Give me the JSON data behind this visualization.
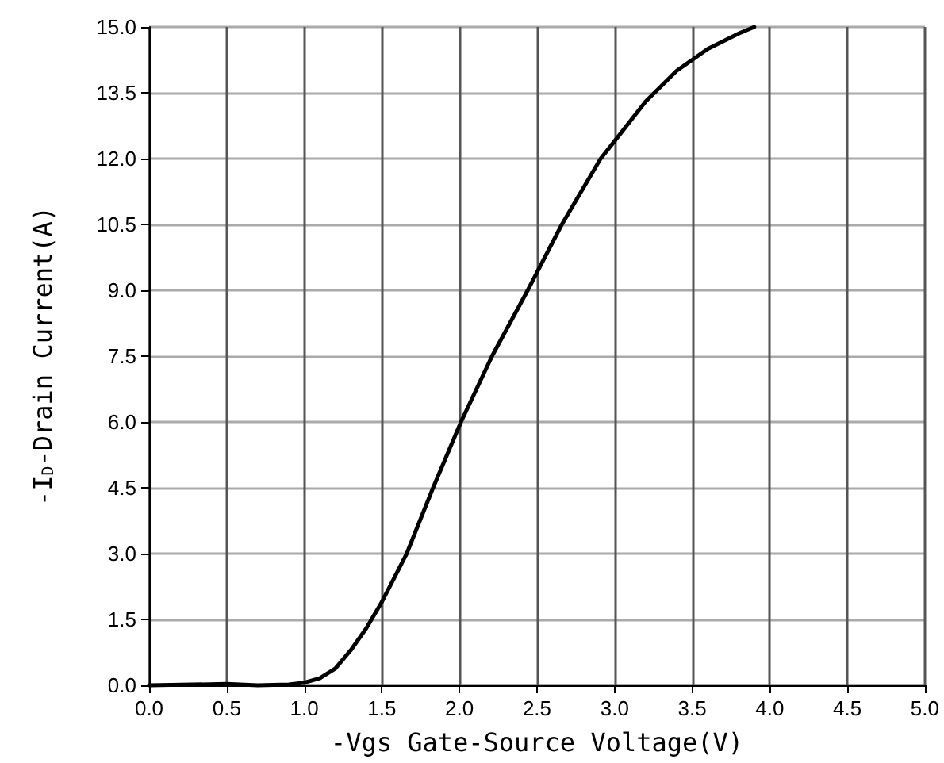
{
  "chart_data": {
    "type": "line",
    "xlabel": "-Vgs Gate-Source Voltage(V)",
    "ylabel": "-I$_{D}$-Drain Current(A)",
    "xlim": [
      0,
      5
    ],
    "xticks": [
      {
        "value": 0,
        "label": "0.0"
      },
      0.5,
      {
        "value": 1,
        "label": "1.0"
      },
      1.5,
      {
        "value": 2,
        "label": "2.0"
      },
      2.5,
      {
        "value": 3,
        "label": "3.0"
      },
      3.5,
      {
        "value": 4,
        "label": "4.0"
      },
      4.5,
      {
        "value": 5,
        "label": "5.0"
      }
    ],
    "ylim": [
      0,
      15
    ],
    "yticks": [
      {
        "value": 0,
        "label": "0.0"
      },
      1.5,
      {
        "value": 3,
        "label": "3.0"
      },
      4.5,
      {
        "value": 6,
        "label": "6.0"
      },
      7.5,
      {
        "value": 9,
        "label": "9.0"
      },
      10.5,
      {
        "value": 12,
        "label": "12.0"
      },
      13.5,
      {
        "value": 15,
        "label": "15.0"
      }
    ],
    "grid": true,
    "marker": "none",
    "line_style": "solid",
    "series": [
      {
        "color": "#000000",
        "x": [
          0,
          0.5,
          0.7,
          0.9,
          1.0,
          1.1,
          1.2,
          1.3,
          1.4,
          1.5,
          1.66,
          1.83,
          2.01,
          2.21,
          2.44,
          2.66,
          2.91,
          3.0,
          3.2,
          3.4,
          3.6,
          3.8,
          3.9
        ],
        "values": [
          0,
          0.03,
          0,
          0.02,
          0.06,
          0.16,
          0.38,
          0.8,
          1.3,
          1.9,
          3.0,
          4.5,
          6.0,
          7.5,
          9.0,
          10.5,
          12.0,
          12.4,
          13.3,
          14.0,
          14.5,
          14.85,
          15.0
        ]
      }
    ]
  }
}
